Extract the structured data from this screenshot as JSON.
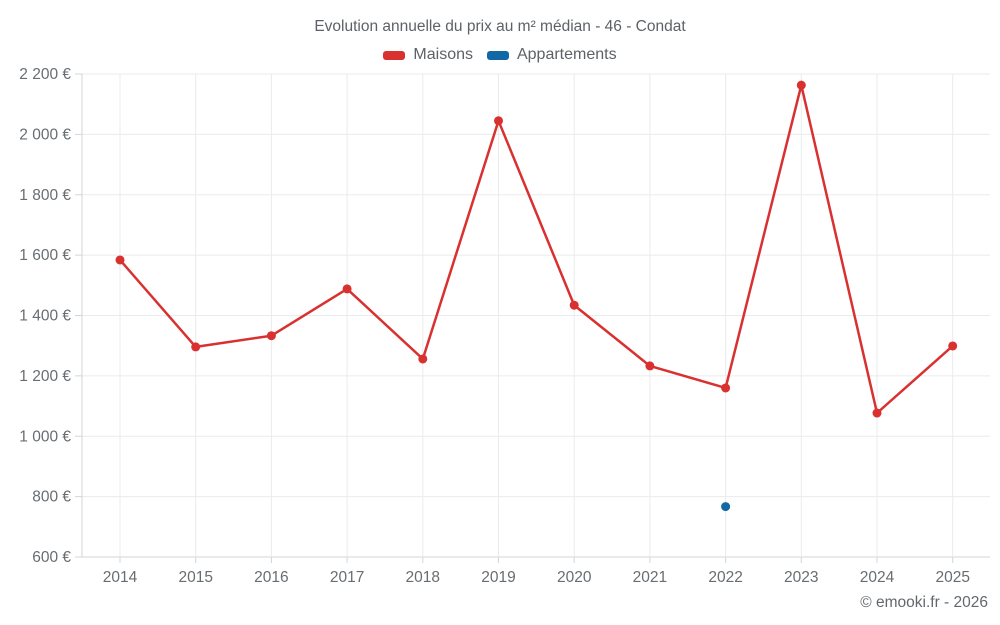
{
  "title": "Evolution annuelle du prix au m² médian - 46 - Condat",
  "legend": {
    "items": [
      {
        "label": "Maisons",
        "color": "#d93030"
      },
      {
        "label": "Appartements",
        "color": "#1268a4"
      }
    ]
  },
  "footer": {
    "copyright": "© emooki.fr - 2026"
  },
  "chart_data": {
    "type": "line",
    "title": "Evolution annuelle du prix au m² médian - 46 - Condat",
    "x": [
      2014,
      2015,
      2016,
      2017,
      2018,
      2019,
      2020,
      2021,
      2022,
      2023,
      2024,
      2025
    ],
    "series": [
      {
        "name": "Maisons",
        "color": "#d93030",
        "values": [
          1584,
          1296,
          1333,
          1488,
          1256,
          2045,
          1434,
          1233,
          1160,
          2163,
          1077,
          1299
        ]
      },
      {
        "name": "Appartements",
        "color": "#1268a4",
        "values": [
          null,
          null,
          null,
          null,
          null,
          null,
          null,
          null,
          767,
          null,
          null,
          null
        ]
      }
    ],
    "xlabel": "",
    "ylabel": "",
    "ylim": [
      600,
      2200
    ],
    "ytick_step": 200,
    "ytick_labels": [
      "600 €",
      "800 €",
      "1 000 €",
      "1 200 €",
      "1 400 €",
      "1 600 €",
      "1 800 €",
      "2 000 €",
      "2 200 €"
    ],
    "grid": true,
    "legend_position": "top"
  }
}
